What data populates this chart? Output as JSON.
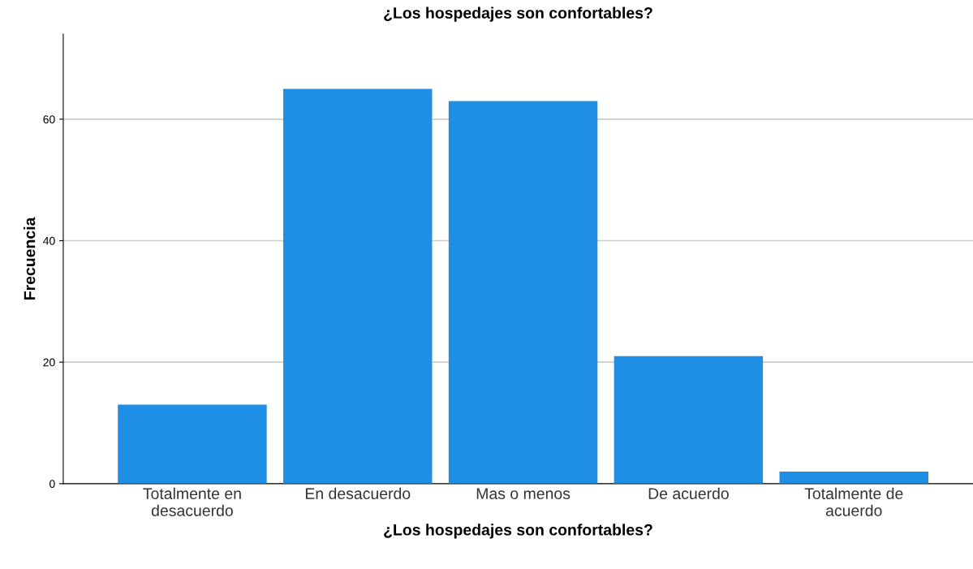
{
  "chart_data": {
    "type": "bar",
    "title": "¿Los hospedajes son confortables?",
    "xlabel": "¿Los hospedajes son confortables?",
    "ylabel": "Frecuencia",
    "categories": [
      "Totalmente en\ndesacuerdo",
      "En desacuerdo",
      "Mas o menos",
      "De acuerdo",
      "Totalmente de\nacuerdo"
    ],
    "values": [
      13,
      65,
      63,
      21,
      2
    ],
    "color": "#1f8fe5",
    "ylim": [
      0,
      74
    ],
    "yticks": [
      0,
      20,
      40,
      60
    ],
    "grid": "y"
  }
}
